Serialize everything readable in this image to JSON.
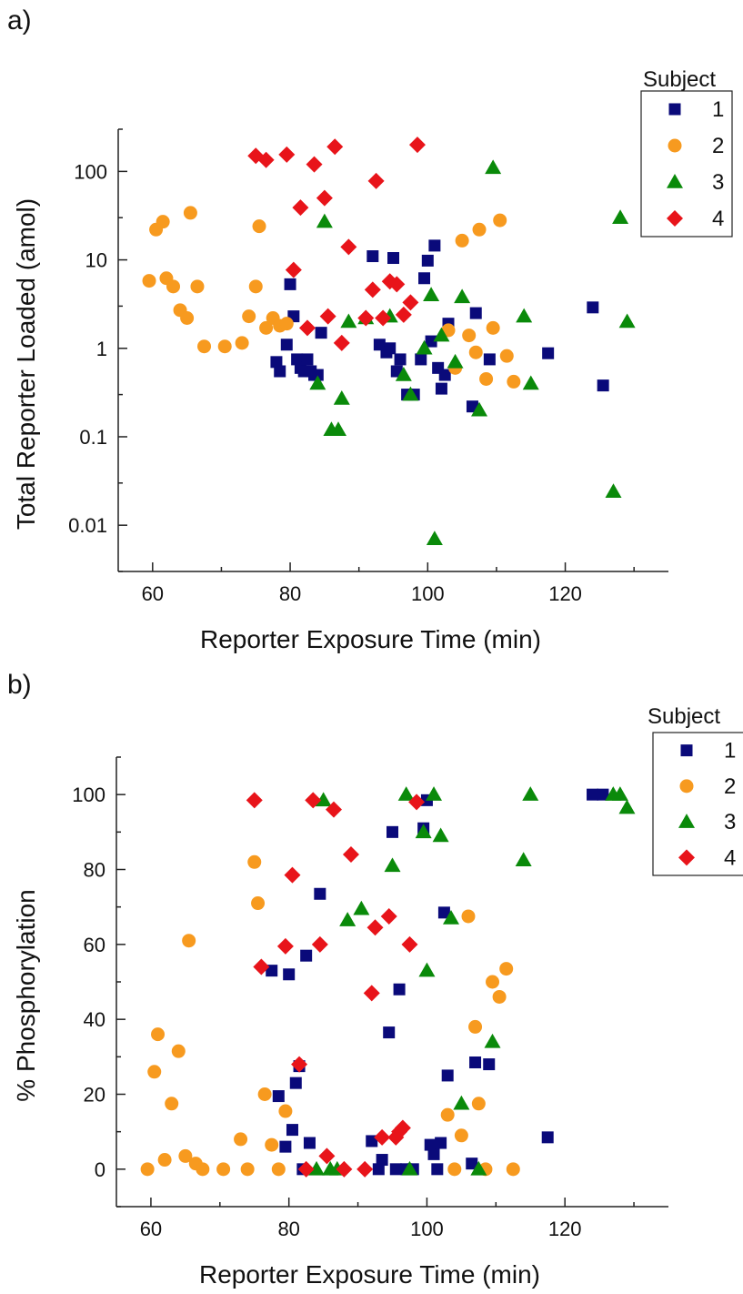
{
  "chart_data": [
    {
      "panel_label": "a)",
      "type": "scatter",
      "xlabel": "Reporter Exposure Time (min)",
      "ylabel": "Total Reporter Loaded (amol)",
      "xlim": [
        55,
        135
      ],
      "ylim": [
        0.003,
        300
      ],
      "yscale": "log",
      "xticks": [
        60,
        80,
        100,
        120
      ],
      "yticks": [
        0.01,
        0.1,
        1,
        10,
        100
      ],
      "ytick_labels": [
        "0.01",
        "0.1",
        "1",
        "10",
        "100"
      ],
      "legend": {
        "title": "Subject",
        "placement": "top-right"
      },
      "series": [
        {
          "name": "1",
          "marker": "square",
          "color": "#0a0a7a",
          "points": [
            [
              80,
              5.3
            ],
            [
              80.5,
              2.3
            ],
            [
              78,
              0.7
            ],
            [
              78.5,
              0.55
            ],
            [
              79.5,
              1.1
            ],
            [
              81,
              0.75
            ],
            [
              81.5,
              0.6
            ],
            [
              82,
              0.55
            ],
            [
              82.5,
              0.75
            ],
            [
              83,
              0.55
            ],
            [
              83.5,
              0.5
            ],
            [
              84,
              0.5
            ],
            [
              84.5,
              1.5
            ],
            [
              92,
              11
            ],
            [
              93,
              1.1
            ],
            [
              94,
              0.9
            ],
            [
              94.5,
              1
            ],
            [
              95,
              10.5
            ],
            [
              95.5,
              0.55
            ],
            [
              96,
              0.75
            ],
            [
              97,
              0.3
            ],
            [
              98,
              0.3
            ],
            [
              99,
              0.75
            ],
            [
              99.5,
              6.2
            ],
            [
              100,
              9.8
            ],
            [
              100.5,
              1.2
            ],
            [
              101,
              14.5
            ],
            [
              101.5,
              0.6
            ],
            [
              102,
              0.35
            ],
            [
              102.5,
              0.5
            ],
            [
              103,
              1.9
            ],
            [
              106.5,
              0.22
            ],
            [
              107,
              2.5
            ],
            [
              109,
              0.75
            ],
            [
              117.5,
              0.88
            ],
            [
              124,
              2.9
            ],
            [
              125.5,
              0.38
            ]
          ]
        },
        {
          "name": "2",
          "marker": "circle",
          "color": "#f79a1f",
          "points": [
            [
              59.5,
              5.8
            ],
            [
              60.5,
              22
            ],
            [
              61.5,
              27
            ],
            [
              62,
              6.2
            ],
            [
              63,
              5
            ],
            [
              64,
              2.7
            ],
            [
              65,
              2.2
            ],
            [
              65.5,
              34
            ],
            [
              66.5,
              5
            ],
            [
              67.5,
              1.05
            ],
            [
              70.5,
              1.05
            ],
            [
              73,
              1.15
            ],
            [
              74,
              2.3
            ],
            [
              75,
              5
            ],
            [
              75.5,
              24
            ],
            [
              76.5,
              1.7
            ],
            [
              77.5,
              2.2
            ],
            [
              78.5,
              1.8
            ],
            [
              79.5,
              1.9
            ],
            [
              103,
              1.6
            ],
            [
              104,
              0.6
            ],
            [
              105,
              16.5
            ],
            [
              106,
              1.4
            ],
            [
              107,
              0.9
            ],
            [
              107.5,
              22
            ],
            [
              108.5,
              0.45
            ],
            [
              109.5,
              1.7
            ],
            [
              110.5,
              28
            ],
            [
              111.5,
              0.82
            ],
            [
              112.5,
              0.42
            ]
          ]
        },
        {
          "name": "3",
          "marker": "triangle",
          "color": "#0a8a0a",
          "points": [
            [
              84,
              0.4
            ],
            [
              85,
              27
            ],
            [
              86,
              0.12
            ],
            [
              87,
              0.12
            ],
            [
              87.5,
              0.27
            ],
            [
              88.5,
              2
            ],
            [
              91,
              2.2
            ],
            [
              94.5,
              2.3
            ],
            [
              96.5,
              0.5
            ],
            [
              97.5,
              0.3
            ],
            [
              99.5,
              1
            ],
            [
              100.5,
              4
            ],
            [
              101,
              0.007
            ],
            [
              102,
              1.4
            ],
            [
              104,
              0.7
            ],
            [
              105,
              3.8
            ],
            [
              107.5,
              0.2
            ],
            [
              109.5,
              110
            ],
            [
              114,
              2.3
            ],
            [
              115,
              0.4
            ],
            [
              127,
              0.024
            ],
            [
              128,
              30
            ],
            [
              129,
              2
            ]
          ]
        },
        {
          "name": "4",
          "marker": "diamond",
          "color": "#e8141a",
          "points": [
            [
              75,
              150
            ],
            [
              76.5,
              135
            ],
            [
              79.5,
              155
            ],
            [
              80.5,
              7.7
            ],
            [
              81.5,
              39
            ],
            [
              82.5,
              1.7
            ],
            [
              83.5,
              120
            ],
            [
              85,
              50
            ],
            [
              85.5,
              2.3
            ],
            [
              86.5,
              190
            ],
            [
              87.5,
              1.15
            ],
            [
              88.5,
              14
            ],
            [
              91,
              2.2
            ],
            [
              92,
              4.6
            ],
            [
              92.5,
              78
            ],
            [
              93.5,
              2.2
            ],
            [
              94.5,
              5.7
            ],
            [
              95.5,
              5.3
            ],
            [
              96.5,
              2.4
            ],
            [
              97.5,
              3.3
            ],
            [
              98.5,
              200
            ]
          ]
        }
      ]
    },
    {
      "panel_label": "b)",
      "type": "scatter",
      "xlabel": "Reporter Exposure Time (min)",
      "ylabel": "% Phosphorylation",
      "xlim": [
        55,
        135
      ],
      "ylim": [
        -10,
        110
      ],
      "yscale": "linear",
      "xticks": [
        60,
        80,
        100,
        120
      ],
      "yticks": [
        0,
        20,
        40,
        60,
        80,
        100
      ],
      "ytick_labels": [
        "0",
        "20",
        "40",
        "60",
        "80",
        "100"
      ],
      "legend": {
        "title": "Subject",
        "placement": "top-right"
      },
      "series": [
        {
          "name": "1",
          "marker": "square",
          "color": "#0a0a7a",
          "points": [
            [
              77.5,
              53
            ],
            [
              78.5,
              19.5
            ],
            [
              79.5,
              6
            ],
            [
              80,
              52
            ],
            [
              80.5,
              10.5
            ],
            [
              81,
              23
            ],
            [
              81.5,
              27.5
            ],
            [
              82,
              0
            ],
            [
              82.5,
              57
            ],
            [
              83,
              7
            ],
            [
              84.5,
              73.5
            ],
            [
              92,
              7.5
            ],
            [
              93,
              0
            ],
            [
              93.5,
              2.5
            ],
            [
              94.5,
              36.5
            ],
            [
              95,
              90
            ],
            [
              95.5,
              0
            ],
            [
              96,
              48
            ],
            [
              97,
              0
            ],
            [
              98,
              0
            ],
            [
              99.5,
              91
            ],
            [
              100,
              98.5
            ],
            [
              100.5,
              6.5
            ],
            [
              101,
              4
            ],
            [
              101.5,
              0
            ],
            [
              102,
              7
            ],
            [
              102.5,
              68.5
            ],
            [
              103,
              25
            ],
            [
              106.5,
              1.5
            ],
            [
              107,
              28.5
            ],
            [
              109,
              28
            ],
            [
              117.5,
              8.5
            ],
            [
              124,
              100
            ],
            [
              125.5,
              100
            ]
          ]
        },
        {
          "name": "2",
          "marker": "circle",
          "color": "#f79a1f",
          "points": [
            [
              59.5,
              0
            ],
            [
              60.5,
              26
            ],
            [
              61,
              36
            ],
            [
              62,
              2.5
            ],
            [
              63,
              17.5
            ],
            [
              64,
              31.5
            ],
            [
              65,
              3.5
            ],
            [
              65.5,
              61
            ],
            [
              66.5,
              1.5
            ],
            [
              67.5,
              0
            ],
            [
              70.5,
              0
            ],
            [
              73,
              8
            ],
            [
              74,
              0
            ],
            [
              75,
              82
            ],
            [
              75.5,
              71
            ],
            [
              76.5,
              20
            ],
            [
              77.5,
              6.5
            ],
            [
              78.5,
              0
            ],
            [
              79.5,
              15.5
            ],
            [
              103,
              14.5
            ],
            [
              104,
              0
            ],
            [
              105,
              9
            ],
            [
              106,
              67.5
            ],
            [
              107,
              38
            ],
            [
              107.5,
              17.5
            ],
            [
              108.5,
              0
            ],
            [
              109.5,
              50
            ],
            [
              110.5,
              46
            ],
            [
              111.5,
              53.5
            ],
            [
              112.5,
              0
            ]
          ]
        },
        {
          "name": "3",
          "marker": "triangle",
          "color": "#0a8a0a",
          "points": [
            [
              84,
              0
            ],
            [
              85,
              98.5
            ],
            [
              86,
              0
            ],
            [
              87,
              0
            ],
            [
              88.5,
              66.5
            ],
            [
              90.5,
              69.5
            ],
            [
              95,
              81
            ],
            [
              97,
              100
            ],
            [
              97.5,
              0
            ],
            [
              99.5,
              90
            ],
            [
              100,
              53
            ],
            [
              101,
              100
            ],
            [
              102,
              89
            ],
            [
              103.5,
              67
            ],
            [
              105,
              17.5
            ],
            [
              107.5,
              0
            ],
            [
              109.5,
              34
            ],
            [
              114,
              82.5
            ],
            [
              115,
              100
            ],
            [
              127,
              100
            ],
            [
              128,
              100
            ],
            [
              129,
              96.5
            ]
          ]
        },
        {
          "name": "4",
          "marker": "diamond",
          "color": "#e8141a",
          "points": [
            [
              75,
              98.5
            ],
            [
              76,
              54
            ],
            [
              79.5,
              59.5
            ],
            [
              80.5,
              78.5
            ],
            [
              81.5,
              28
            ],
            [
              82.5,
              0
            ],
            [
              83.5,
              98.5
            ],
            [
              84.5,
              60
            ],
            [
              85.5,
              3.5
            ],
            [
              86.5,
              96
            ],
            [
              88,
              0
            ],
            [
              89,
              84
            ],
            [
              91,
              0
            ],
            [
              92,
              47
            ],
            [
              92.5,
              64.5
            ],
            [
              93.5,
              8.5
            ],
            [
              94.5,
              67.5
            ],
            [
              95.5,
              8.5
            ],
            [
              96,
              10
            ],
            [
              96.5,
              11
            ],
            [
              97.5,
              60
            ],
            [
              98.5,
              98
            ]
          ]
        }
      ]
    }
  ]
}
